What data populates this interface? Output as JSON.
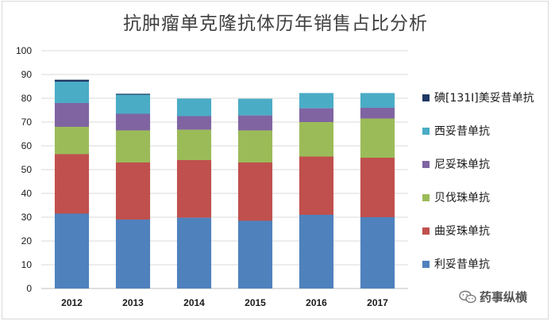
{
  "chart_data": {
    "type": "bar",
    "stacked": true,
    "title": "抗肿瘤单克隆抗体历年销售占比分析",
    "xlabel": "",
    "ylabel": "",
    "categories": [
      "2012",
      "2013",
      "2014",
      "2015",
      "2016",
      "2017"
    ],
    "ylim": [
      0,
      100
    ],
    "yticks": [
      0,
      10,
      20,
      30,
      40,
      50,
      60,
      70,
      80,
      90,
      100
    ],
    "grid": true,
    "legend_position": "right",
    "series": [
      {
        "name": "利妥昔单抗",
        "color": "#4f81bd",
        "values": [
          31.5,
          29.0,
          29.8,
          28.5,
          31.0,
          30.0
        ]
      },
      {
        "name": "曲妥珠单抗",
        "color": "#c0504d",
        "values": [
          25.0,
          24.0,
          24.2,
          24.5,
          24.5,
          25.0
        ]
      },
      {
        "name": "贝伐珠单抗",
        "color": "#9bbb59",
        "values": [
          11.5,
          13.5,
          12.8,
          13.5,
          14.5,
          16.5
        ]
      },
      {
        "name": "尼妥珠单抗",
        "color": "#8064a2",
        "values": [
          10.0,
          7.0,
          5.7,
          6.3,
          5.8,
          4.5
        ]
      },
      {
        "name": "西妥昔单抗",
        "color": "#4bacc6",
        "values": [
          9.0,
          8.0,
          7.4,
          7.0,
          6.4,
          6.2
        ]
      },
      {
        "name": "碘[131I]美妥昔单抗",
        "color": "#1f3864",
        "values": [
          0.8,
          0.4,
          0.0,
          0.0,
          0.0,
          0.0
        ]
      }
    ]
  },
  "watermark": {
    "text": "药事纵横"
  }
}
